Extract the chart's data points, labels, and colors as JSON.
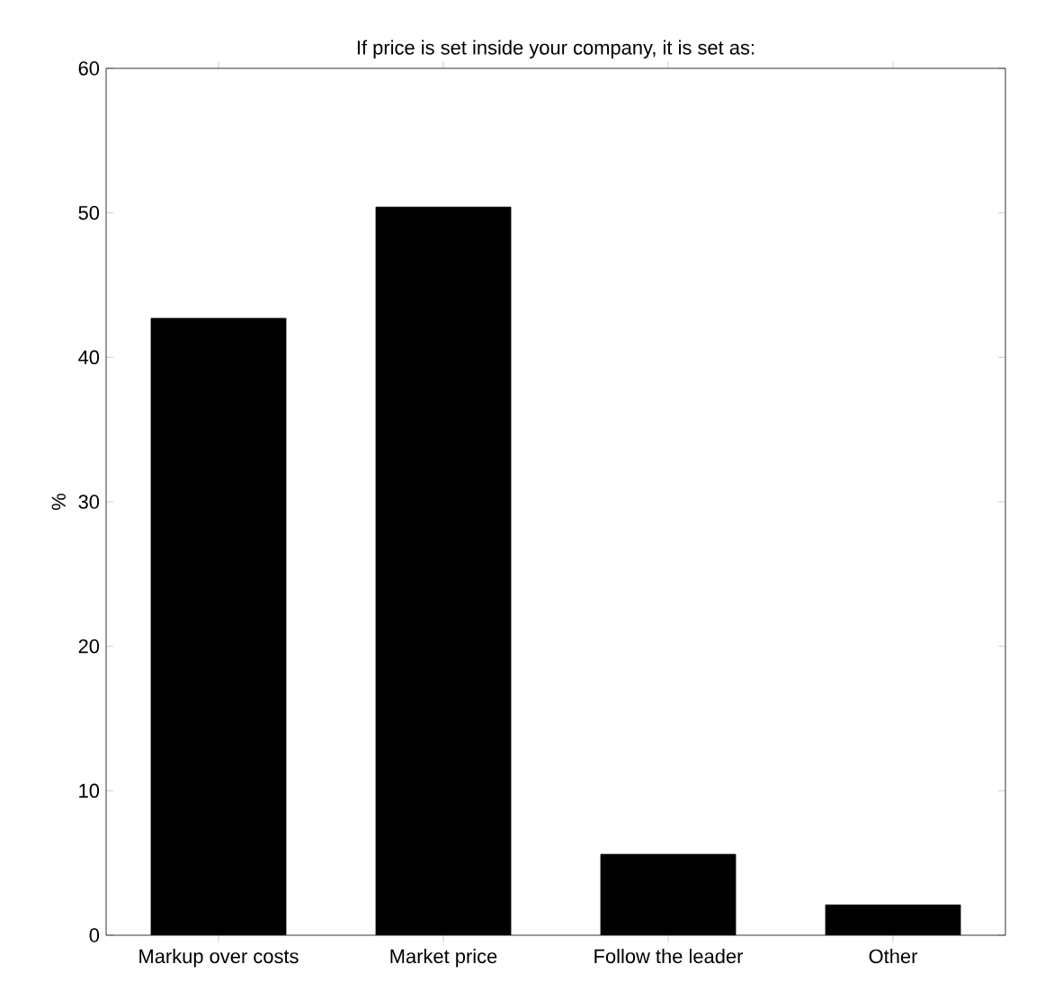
{
  "chart_data": {
    "type": "bar",
    "title": "If price is set inside your company, it is set as:",
    "ylabel": "%",
    "categories": [
      "Markup over costs",
      "Market price",
      "Follow the leader",
      "Other"
    ],
    "values": [
      42.7,
      50.4,
      5.6,
      2.1
    ],
    "color": "#000000",
    "ylim": [
      0,
      60
    ],
    "yticks": [
      0,
      10,
      20,
      30,
      40,
      50,
      60
    ]
  }
}
